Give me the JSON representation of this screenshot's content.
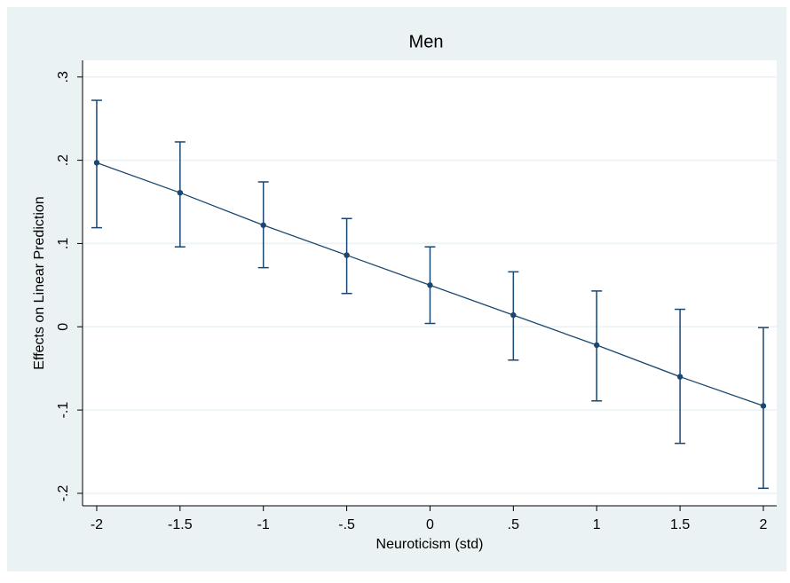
{
  "chart_data": {
    "type": "errorbar-line",
    "title": "Men",
    "x_label": "Neuroticism (std)",
    "y_label": "Effects on Linear Prediction",
    "series": [
      {
        "color": "#1a476f",
        "x": [
          -2,
          -1.5,
          -1,
          -0.5,
          0,
          0.5,
          1,
          1.5,
          2
        ],
        "values": [
          0.197,
          0.161,
          0.122,
          0.086,
          0.05,
          0.014,
          -0.022,
          -0.06,
          -0.095
        ],
        "lower": [
          0.119,
          0.096,
          0.071,
          0.04,
          0.004,
          -0.04,
          -0.089,
          -0.14,
          -0.194
        ],
        "upper": [
          0.272,
          0.222,
          0.174,
          0.13,
          0.096,
          0.066,
          0.043,
          0.021,
          -0.001
        ]
      }
    ],
    "xlim": [
      -2.085,
      2.08
    ],
    "xticks": [
      -2,
      {
        "value": -1.5,
        "label": "-1.5"
      },
      -1,
      {
        "value": -0.5,
        "label": "-.5"
      },
      0,
      {
        "value": 0.5,
        "label": ".5"
      },
      1,
      {
        "value": 1.5,
        "label": "1.5"
      },
      2
    ],
    "ylim": [
      -0.215,
      0.32
    ],
    "yticks": [
      {
        "value": -0.2,
        "label": "-.2"
      },
      {
        "value": -0.1,
        "label": "-.1"
      },
      0,
      {
        "value": 0.1,
        "label": ".1"
      },
      {
        "value": 0.2,
        "label": ".2"
      },
      {
        "value": 0.3,
        "label": ".3"
      }
    ],
    "grid": true
  }
}
